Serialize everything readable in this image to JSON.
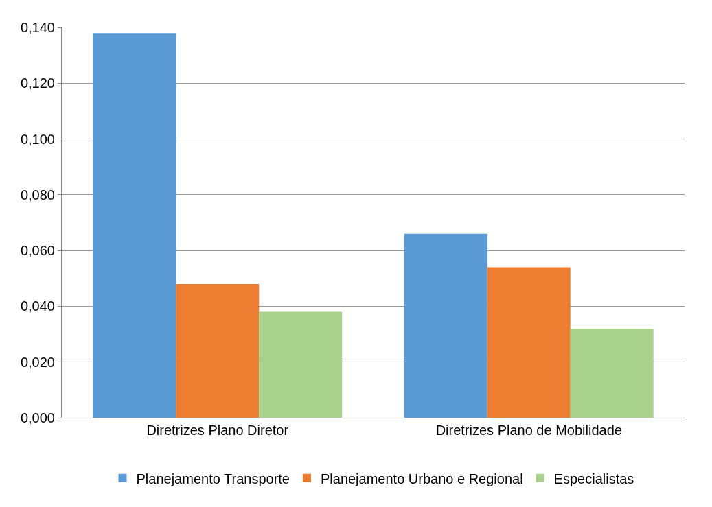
{
  "chart_data": {
    "type": "bar",
    "categories": [
      "Diretrizes Plano Diretor",
      "Diretrizes Plano de Mobilidade"
    ],
    "series": [
      {
        "name": "Planejamento Transporte",
        "color": "#5b9bd5",
        "values": [
          0.138,
          0.066
        ]
      },
      {
        "name": "Planejamento Urbano e Regional",
        "color": "#ed7d31",
        "values": [
          0.048,
          0.054
        ]
      },
      {
        "name": "Especialistas",
        "color": "#a9d18e",
        "values": [
          0.038,
          0.032
        ]
      }
    ],
    "ylim": [
      0,
      0.14
    ],
    "yticks": [
      {
        "value": 0,
        "label": "0,000"
      },
      {
        "value": 0.02,
        "label": "0,020"
      },
      {
        "value": 0.04,
        "label": "0,040"
      },
      {
        "value": 0.06,
        "label": "0,060"
      },
      {
        "value": 0.08,
        "label": "0,080"
      },
      {
        "value": 0.1,
        "label": "0,100"
      },
      {
        "value": 0.12,
        "label": "0,120"
      },
      {
        "value": 0.14,
        "label": "0,140"
      }
    ],
    "grid": "y",
    "legend": "bottom"
  }
}
